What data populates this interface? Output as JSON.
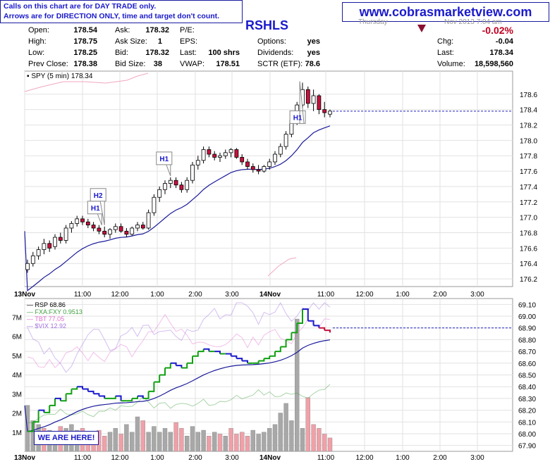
{
  "header": {
    "note_line1": "Calls on this chart are for DAY TRADE only.",
    "note_line2": "Arrows are for DIRECTION ONLY, time and target don't count.",
    "website": "www.cobrasmarketview.com",
    "symbol_partial": "RSHLS",
    "partial_date_left": "Thursday",
    "partial_date_right": "Nov 2013 7:04 am"
  },
  "quote": {
    "open_label": "Open:",
    "open": "178.54",
    "high_label": "High:",
    "high": "178.75",
    "low_label": "Low:",
    "low": "178.25",
    "prev_close_label": "Prev Close:",
    "prev_close": "178.38",
    "ask_label": "Ask:",
    "ask": "178.32",
    "ask_size_label": "Ask Size:",
    "ask_size": "1",
    "bid_label": "Bid:",
    "bid": "178.32",
    "bid_size_label": "Bid Size:",
    "bid_size": "38",
    "pe_label": "P/E:",
    "pe": "",
    "eps_label": "EPS:",
    "eps": "",
    "last_trade_label": "Last:",
    "last_trade": "100 shrs",
    "vwap_label": "VWAP:",
    "vwap": "178.51",
    "options_label": "Options:",
    "options": "yes",
    "dividends_label": "Dividends:",
    "dividends": "yes",
    "sctr_label": "SCTR (ETF):",
    "sctr": "78.6",
    "chg_pct": "-0.02%",
    "chg_label": "Chg:",
    "chg": "-0.04",
    "last_label": "Last:",
    "last": "178.34",
    "volume_label": "Volume:",
    "volume": "18,598,560"
  },
  "badge": {
    "we_are_here": "WE ARE HERE!"
  },
  "colors": {
    "up_candle": "#ffffff",
    "down_candle": "#c8103c",
    "ema": "#1a1a9a",
    "ref_line": "#2020c0",
    "bollinger": "#f0a8c0",
    "rsp_up": "#10a010",
    "rsp_down": "#1a1acc",
    "fxa": "#40a040",
    "tbt": "#e070d0",
    "vix": "#a070e0",
    "volume_up": "#a8a8a8",
    "volume_down": "#f0a0a8"
  },
  "chart_data": [
    {
      "type": "candlestick",
      "legend": "SPY (5 min) 178.34",
      "ylim": [
        176.1,
        178.9
      ],
      "yticks": [
        "176.2",
        "176.4",
        "176.6",
        "176.8",
        "177.0",
        "177.2",
        "177.4",
        "177.6",
        "177.8",
        "178.0",
        "178.2",
        "178.4",
        "178.6"
      ],
      "xticks": [
        "13Nov",
        "11:00",
        "12:00",
        "1:00",
        "2:00",
        "3:00",
        "14Nov",
        "11:00",
        "12:00",
        "1:00",
        "2:00",
        "3:00"
      ],
      "close_line": 178.38,
      "annotations": [
        {
          "label": "H1",
          "time": 13.5
        },
        {
          "label": "H2",
          "time": 14.0
        },
        {
          "label": "H1",
          "time": 26.0
        },
        {
          "label": "H1",
          "time": 49.5
        }
      ],
      "candles_ohlc": [
        [
          176.32,
          176.45,
          176.28,
          176.4
        ],
        [
          176.4,
          176.55,
          176.36,
          176.5
        ],
        [
          176.5,
          176.62,
          176.45,
          176.58
        ],
        [
          176.58,
          176.72,
          176.52,
          176.66
        ],
        [
          176.66,
          176.7,
          176.55,
          176.6
        ],
        [
          176.62,
          176.78,
          176.58,
          176.74
        ],
        [
          176.74,
          176.8,
          176.66,
          176.7
        ],
        [
          176.7,
          176.9,
          176.66,
          176.86
        ],
        [
          176.86,
          176.95,
          176.8,
          176.92
        ],
        [
          176.92,
          177.02,
          176.88,
          176.98
        ],
        [
          176.98,
          177.02,
          176.9,
          176.94
        ],
        [
          176.94,
          176.98,
          176.86,
          176.9
        ],
        [
          176.9,
          176.94,
          176.82,
          176.86
        ],
        [
          176.86,
          176.9,
          176.78,
          176.82
        ],
        [
          176.82,
          176.88,
          176.74,
          176.78
        ],
        [
          176.78,
          176.86,
          176.72,
          176.84
        ],
        [
          176.84,
          176.92,
          176.8,
          176.88
        ],
        [
          176.88,
          176.92,
          176.8,
          176.82
        ],
        [
          176.82,
          176.86,
          176.74,
          176.78
        ],
        [
          176.78,
          176.88,
          176.76,
          176.86
        ],
        [
          176.86,
          176.94,
          176.82,
          176.9
        ],
        [
          176.9,
          176.94,
          176.84,
          176.86
        ],
        [
          176.86,
          177.1,
          176.84,
          177.06
        ],
        [
          177.06,
          177.3,
          177.02,
          177.26
        ],
        [
          177.26,
          177.4,
          177.2,
          177.36
        ],
        [
          177.36,
          177.48,
          177.3,
          177.44
        ],
        [
          177.44,
          177.52,
          177.38,
          177.48
        ],
        [
          177.48,
          177.52,
          177.38,
          177.42
        ],
        [
          177.42,
          177.46,
          177.32,
          177.36
        ],
        [
          177.36,
          177.52,
          177.32,
          177.48
        ],
        [
          177.48,
          177.72,
          177.44,
          177.68
        ],
        [
          177.68,
          177.8,
          177.62,
          177.74
        ],
        [
          177.74,
          177.92,
          177.7,
          177.88
        ],
        [
          177.88,
          177.92,
          177.78,
          177.82
        ],
        [
          177.82,
          177.86,
          177.74,
          177.78
        ],
        [
          177.78,
          177.84,
          177.72,
          177.8
        ],
        [
          177.8,
          177.88,
          177.76,
          177.84
        ],
        [
          177.84,
          177.9,
          177.78,
          177.88
        ],
        [
          177.88,
          177.9,
          177.76,
          177.78
        ],
        [
          177.78,
          177.82,
          177.68,
          177.72
        ],
        [
          177.72,
          177.76,
          177.62,
          177.66
        ],
        [
          177.66,
          177.7,
          177.58,
          177.62
        ],
        [
          177.62,
          177.68,
          177.56,
          177.6
        ],
        [
          177.6,
          177.68,
          177.58,
          177.66
        ],
        [
          177.66,
          177.76,
          177.62,
          177.72
        ],
        [
          177.72,
          177.86,
          177.68,
          177.82
        ],
        [
          177.82,
          177.96,
          177.78,
          177.92
        ],
        [
          177.92,
          178.12,
          177.88,
          178.08
        ],
        [
          178.08,
          178.3,
          178.04,
          178.26
        ],
        [
          178.26,
          178.5,
          178.2,
          178.46
        ],
        [
          178.46,
          178.75,
          178.4,
          178.66
        ],
        [
          178.66,
          178.7,
          178.42,
          178.48
        ],
        [
          178.48,
          178.66,
          178.38,
          178.58
        ],
        [
          178.58,
          178.6,
          178.34,
          178.4
        ],
        [
          178.4,
          178.5,
          178.3,
          178.36
        ],
        [
          178.34,
          178.4,
          178.3,
          178.38
        ]
      ]
    },
    {
      "type": "line",
      "legend": [
        "RSP 68.86",
        "FXA:FXY 0.9513",
        "TBT 77.05",
        "$VIX 12.92"
      ],
      "ylim": [
        67.85,
        69.15
      ],
      "yticks": [
        "67.90",
        "68.00",
        "68.10",
        "68.20",
        "68.30",
        "68.40",
        "68.50",
        "68.60",
        "68.70",
        "68.80",
        "68.90",
        "69.00",
        "69.10"
      ],
      "volume_ticks": [
        "1M",
        "2M",
        "3M",
        "4M",
        "5M",
        "6M",
        "7M"
      ],
      "close_line": 68.9,
      "rsp": [
        68.02,
        68.1,
        68.2,
        68.18,
        68.24,
        68.3,
        68.28,
        68.34,
        68.38,
        68.4,
        68.38,
        68.36,
        68.34,
        68.32,
        68.3,
        68.3,
        68.32,
        68.28,
        68.28,
        68.3,
        68.32,
        68.3,
        68.36,
        68.44,
        68.5,
        68.56,
        68.6,
        68.58,
        68.56,
        68.6,
        68.66,
        68.7,
        68.72,
        68.7,
        68.7,
        68.68,
        68.68,
        68.66,
        68.64,
        68.62,
        68.6,
        68.6,
        68.62,
        68.64,
        68.66,
        68.7,
        68.74,
        68.8,
        68.86,
        68.94,
        69.06,
        68.96,
        68.92,
        68.9,
        68.88,
        68.86
      ],
      "volume": [
        2.4,
        1.6,
        1.4,
        1.2,
        1.1,
        1.0,
        1.3,
        1.2,
        1.4,
        1.1,
        1.2,
        0.9,
        1.0,
        1.1,
        0.8,
        1.0,
        1.2,
        0.9,
        1.4,
        1.0,
        1.8,
        1.6,
        1.0,
        1.3,
        1.0,
        1.2,
        1.0,
        1.5,
        1.2,
        0.8,
        1.3,
        1.0,
        1.1,
        0.8,
        1.0,
        0.9,
        0.8,
        1.2,
        0.9,
        1.0,
        0.8,
        1.1,
        0.9,
        1.0,
        1.2,
        1.4,
        2.0,
        2.5,
        1.6,
        6.9,
        1.2,
        2.8,
        1.4,
        1.2,
        0.9,
        0.7
      ]
    }
  ]
}
